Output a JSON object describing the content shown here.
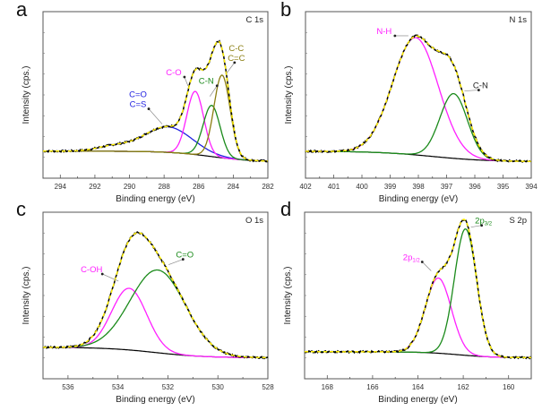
{
  "chart_data": [
    {
      "type": "line",
      "panel": "a",
      "title": "C 1s",
      "xlabel": "Binding energy (eV)",
      "ylabel": "Intensity (cps.)",
      "xlim": [
        295,
        282
      ],
      "xticks": [
        294,
        292,
        290,
        288,
        286,
        284,
        282
      ],
      "x_reversed": true,
      "ylim": [
        0,
        1
      ],
      "background": {
        "left": 0.12,
        "right": 0.05,
        "center": 285.3,
        "width": 1.2
      },
      "components": [
        {
          "name": "C=O\nC=S",
          "label_lines": [
            "C=O",
            "C=S"
          ],
          "center": 287.8,
          "height": 0.17,
          "fwhm": 3.3,
          "color": "#2020e0",
          "tail": true
        },
        {
          "name": "C-O",
          "label_lines": [
            "C-O"
          ],
          "center": 286.2,
          "height": 0.42,
          "fwhm": 1.15,
          "color": "#ff20ff"
        },
        {
          "name": "C-N",
          "label_lines": [
            "C-N"
          ],
          "center": 285.25,
          "height": 0.34,
          "fwhm": 1.15,
          "color": "#1a8a1a"
        },
        {
          "name": "C-C C=C",
          "label_lines": [
            "C-C",
            "C=C"
          ],
          "center": 284.65,
          "height": 0.55,
          "fwhm": 1.1,
          "color": "#8a7d10"
        }
      ],
      "raw_color": "#000000",
      "fit_color": "#ffee00",
      "background_color": "#000000"
    },
    {
      "type": "line",
      "panel": "b",
      "title": "N 1s",
      "xlabel": "Binding energy (eV)",
      "ylabel": "Intensity (cps.)",
      "xlim": [
        402,
        394
      ],
      "xticks": [
        402,
        401,
        400,
        399,
        398,
        397,
        396,
        395,
        394
      ],
      "x_reversed": true,
      "ylim": [
        0,
        1
      ],
      "background": {
        "left": 0.12,
        "right": 0.05,
        "center": 397.5,
        "width": 1.0
      },
      "components": [
        {
          "name": "N-H",
          "label_lines": [
            "N-H"
          ],
          "center": 398.1,
          "height": 0.78,
          "fwhm": 1.9,
          "color": "#ff20ff"
        },
        {
          "name": "C-N",
          "label_lines": [
            "C-N"
          ],
          "center": 396.75,
          "height": 0.43,
          "fwhm": 1.15,
          "color": "#1a8a1a"
        }
      ],
      "raw_color": "#000000",
      "fit_color": "#ffee00",
      "background_color": "#000000",
      "label_colors": {
        "N-H": "#ff20ff",
        "C-N": "#222222"
      }
    },
    {
      "type": "line",
      "panel": "c",
      "title": "O 1s",
      "xlabel": "Binding energy (eV)",
      "ylabel": "Intensity (cps.)",
      "xlim": [
        537,
        528
      ],
      "xticks": [
        536,
        534,
        532,
        530,
        528
      ],
      "x_reversed": true,
      "ylim": [
        0,
        1
      ],
      "background": {
        "left": 0.15,
        "right": 0.08,
        "center": 532.5,
        "width": 1.0
      },
      "components": [
        {
          "name": "C-OH",
          "label_lines": [
            "C-OH"
          ],
          "center": 533.55,
          "height": 0.41,
          "fwhm": 1.65,
          "color": "#ff20ff"
        },
        {
          "name": "C=O",
          "label_lines": [
            "C=O"
          ],
          "center": 532.4,
          "height": 0.55,
          "fwhm": 2.6,
          "color": "#1a8a1a"
        }
      ],
      "raw_color": "#000000",
      "fit_color": "#ffee00",
      "background_color": "#000000"
    },
    {
      "type": "line",
      "panel": "d",
      "title": "S 2p",
      "xlabel": "Binding energy (eV)",
      "ylabel": "Intensity (cps.)",
      "xlim": [
        169,
        159
      ],
      "xticks": [
        168,
        166,
        164,
        162,
        160
      ],
      "x_reversed": true,
      "ylim": [
        0,
        1
      ],
      "background": {
        "left": 0.12,
        "right": 0.08,
        "center": 162.2,
        "width": 0.8
      },
      "components": [
        {
          "name": "2p1/2",
          "label_main": "2p",
          "label_sub": "1/2",
          "center": 163.1,
          "height": 0.5,
          "fwhm": 1.35,
          "color": "#ff20ff"
        },
        {
          "name": "2p3/2",
          "label_main": "2p",
          "label_sub": "3/2",
          "center": 161.9,
          "height": 0.84,
          "fwhm": 1.15,
          "color": "#1a8a1a"
        }
      ],
      "raw_color": "#000000",
      "fit_color": "#ffee00",
      "background_color": "#000000"
    }
  ]
}
